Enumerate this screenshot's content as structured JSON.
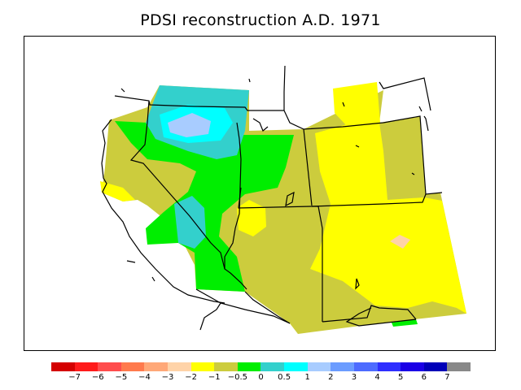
{
  "title": "PDSI reconstruction A.D. 1971",
  "legend": {
    "colors": [
      "#d40000",
      "#ff1a1a",
      "#ff4d4d",
      "#ff7a4d",
      "#ffa878",
      "#ffd3a8",
      "#ffff00",
      "#cccc3d",
      "#00ee00",
      "#33d0cc",
      "#00ffff",
      "#a8ccff",
      "#6b9cff",
      "#4d6bff",
      "#2e2eff",
      "#1a00e6",
      "#0000b8",
      "#888888"
    ],
    "labels": [
      "−7",
      "−6",
      "−5",
      "−4",
      "−3",
      "−2",
      "−1",
      "−0.5",
      "0",
      "0.5",
      "1",
      "2",
      "3",
      "4",
      "5",
      "6",
      "7"
    ]
  },
  "map": {
    "region": "Western United States",
    "palette": {
      "olive": "#cccc3d",
      "yellow": "#ffff00",
      "green": "#00ee00",
      "teal": "#33d0cc",
      "cyan": "#00ffff",
      "lightblue": "#a8ccff",
      "peach": "#ffd3a8",
      "outline": "#000000"
    }
  }
}
